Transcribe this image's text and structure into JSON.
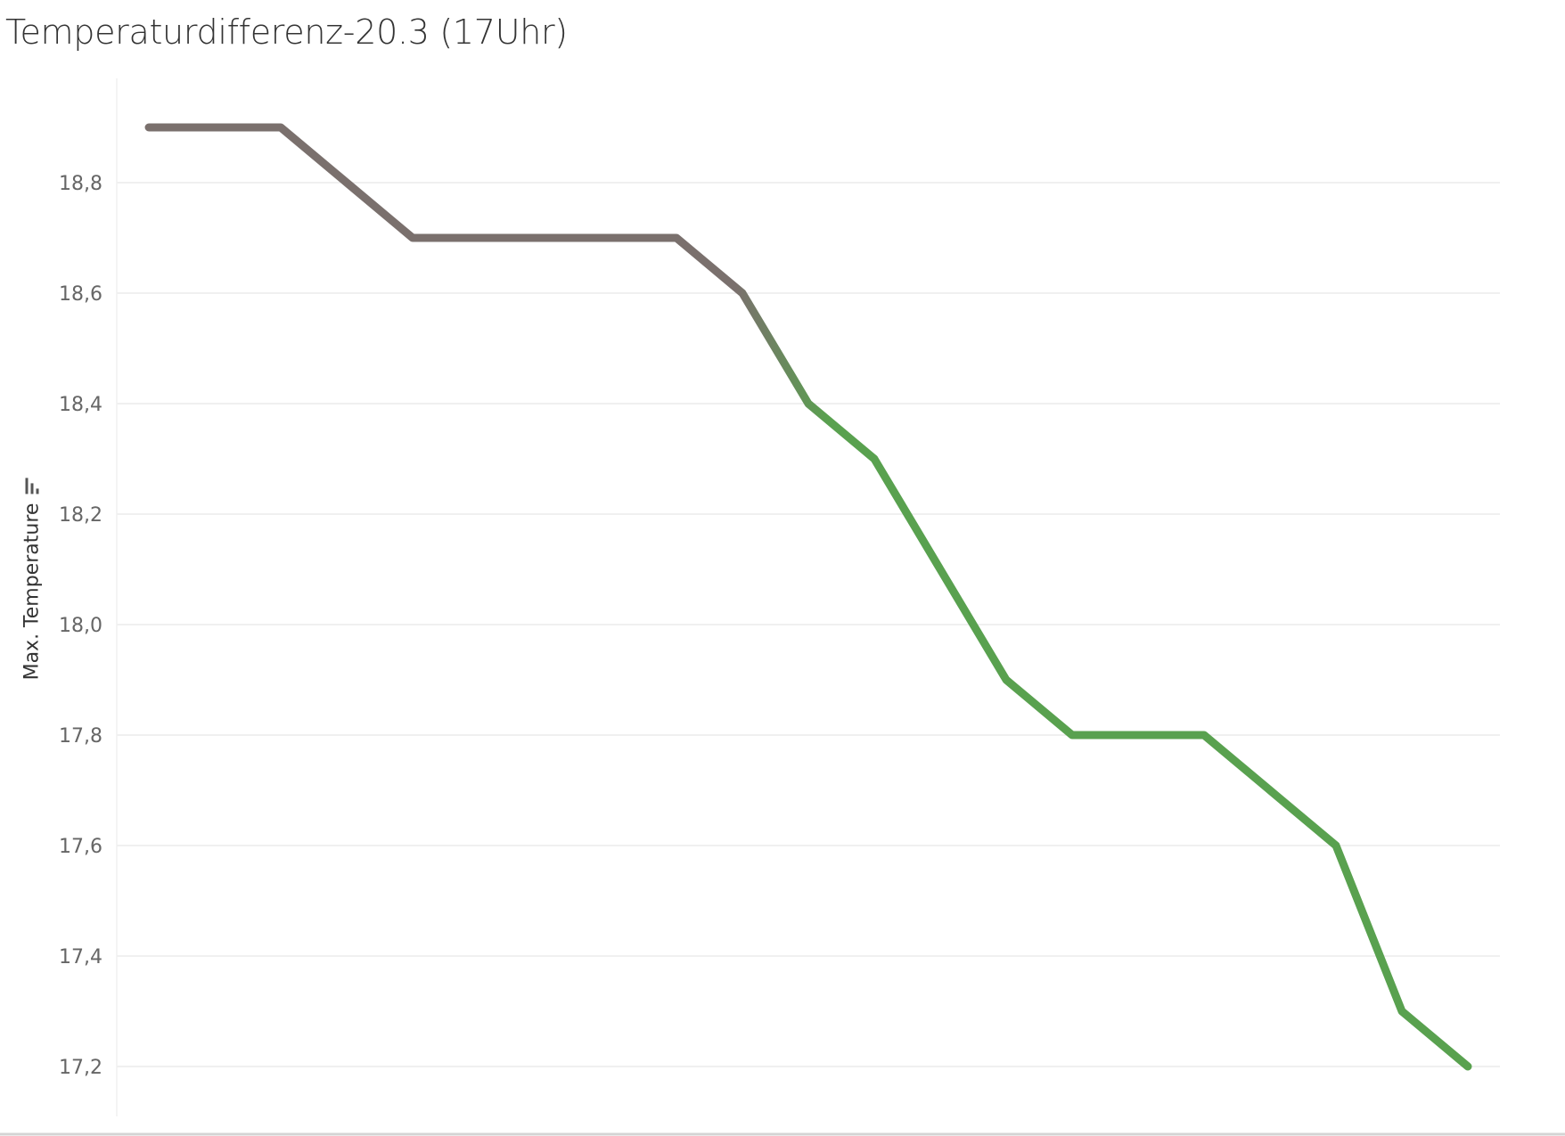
{
  "chart_data": {
    "type": "line",
    "title": "Temperaturdifferenz-20.3 (17Uhr)",
    "xlabel": "",
    "ylabel": "Max. Temperature",
    "ylim": [
      17.1,
      19.0
    ],
    "y_ticks": [
      "17,2",
      "17,4",
      "17,6",
      "17,8",
      "18,0",
      "18,2",
      "18,4",
      "18,6",
      "18,8"
    ],
    "grid": true,
    "series": [
      {
        "values": [
          18.9,
          18.9,
          18.9,
          18.8,
          18.7,
          18.7,
          18.7,
          18.7,
          18.7,
          18.6,
          18.4,
          18.3,
          18.1,
          17.9,
          17.8,
          17.8,
          17.8,
          17.7,
          17.6,
          17.3,
          17.2
        ]
      }
    ],
    "colors": {
      "start": "#7a706d",
      "end": "#59a14f",
      "grid": "#ebebeb",
      "axis": "#d4d4d4"
    }
  }
}
